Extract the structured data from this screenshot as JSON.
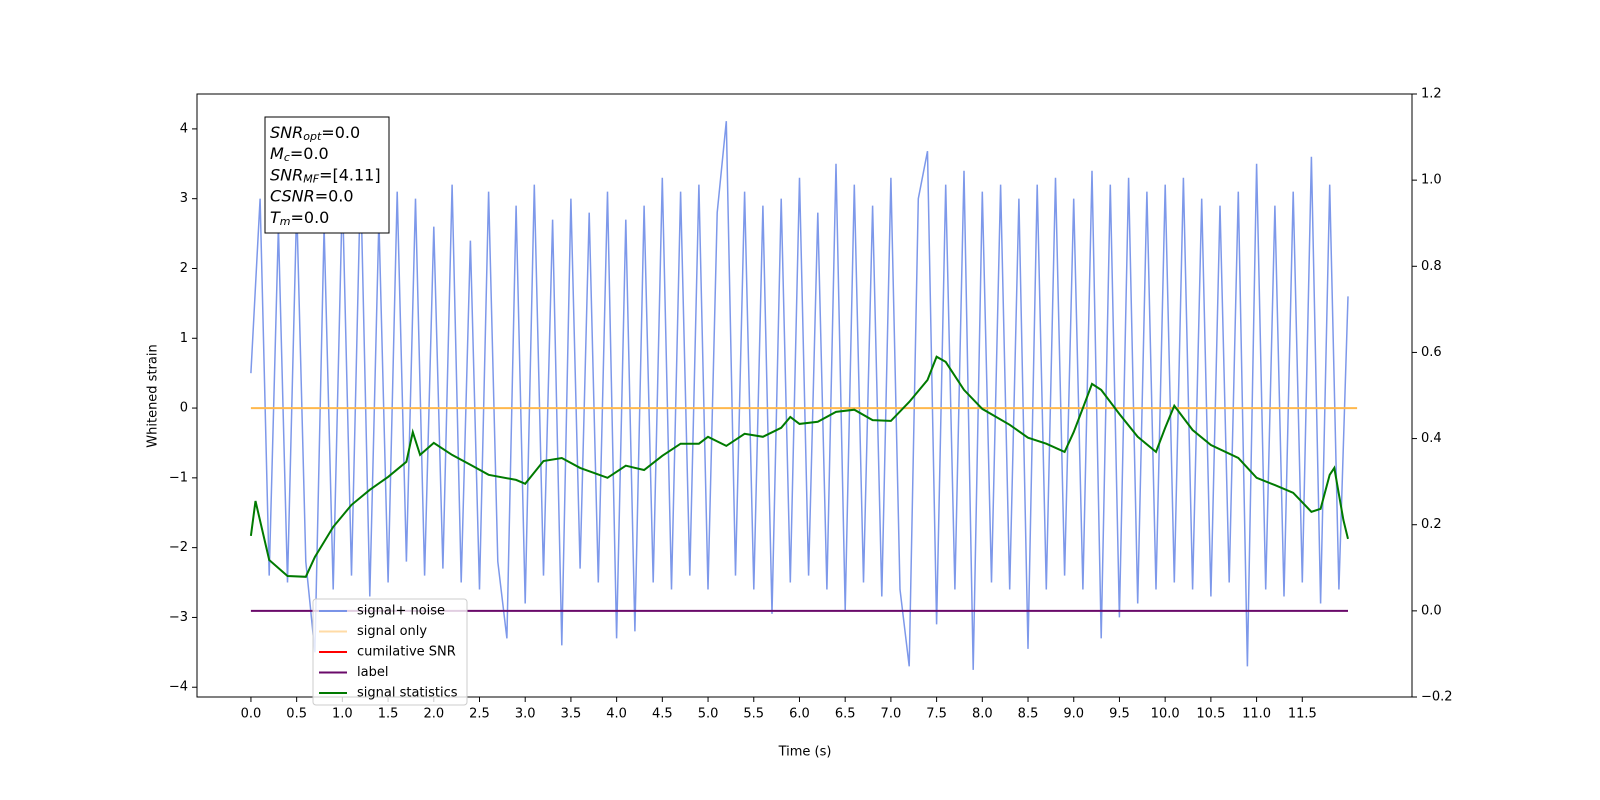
{
  "chart_data": {
    "type": "line",
    "xlabel": "Time (s)",
    "ylabel": "Whitened strain",
    "xlim": [
      -0.59,
      12.7
    ],
    "ylim": [
      -4.14,
      4.5
    ],
    "y2lim": [
      -0.2,
      1.2
    ],
    "xticks": [
      {
        "value": 0,
        "label": "0.0"
      },
      0.5,
      {
        "value": 1,
        "label": "1.0"
      },
      1.5,
      {
        "value": 2,
        "label": "2.0"
      },
      2.5,
      {
        "value": 3,
        "label": "3.0"
      },
      3.5,
      {
        "value": 4,
        "label": "4.0"
      },
      4.5,
      {
        "value": 5,
        "label": "5.0"
      },
      5.5,
      {
        "value": 6,
        "label": "6.0"
      },
      6.5,
      {
        "value": 7,
        "label": "7.0"
      },
      7.5,
      {
        "value": 8,
        "label": "8.0"
      },
      8.5,
      {
        "value": 9,
        "label": "9.0"
      },
      9.5,
      {
        "value": 10,
        "label": "10.0"
      },
      10.5,
      {
        "value": 11,
        "label": "11.0"
      },
      11.5
    ],
    "yticks": [
      {
        "value": -4,
        "label": "−4"
      },
      {
        "value": -3,
        "label": "−3"
      },
      {
        "value": -2,
        "label": "−2"
      },
      {
        "value": -1,
        "label": "−1"
      },
      0,
      1,
      2,
      3,
      4
    ],
    "y2ticks": [
      {
        "value": -0.2,
        "label": "−0.2"
      },
      {
        "value": 0,
        "label": "0.0"
      },
      0.2,
      0.4,
      0.6,
      0.8,
      {
        "value": 1,
        "label": "1.0"
      },
      1.2
    ],
    "legend": "lower left",
    "annotations": [
      {
        "text": "SNR",
        "sub": "opt",
        "rest": "=0.0"
      },
      {
        "text": "M",
        "sub": "c",
        "rest": "=0.0"
      },
      {
        "text": "SNR",
        "sub": "MF",
        "rest": "=[4.11]"
      },
      {
        "text": "CSNR",
        "sub": "",
        "rest": "=0.0"
      },
      {
        "text": "T",
        "sub": "m",
        "rest": "=0.0"
      }
    ],
    "series": [
      {
        "name": "signal+ noise",
        "color": "#6f8de8",
        "opacity": 0.9,
        "x": [
          0,
          0.1,
          0.2,
          0.3,
          0.4,
          0.5,
          0.6,
          0.7,
          0.8,
          0.9,
          1,
          1.1,
          1.2,
          1.3,
          1.4,
          1.5,
          1.6,
          1.7,
          1.8,
          1.9,
          2,
          2.1,
          2.2,
          2.3,
          2.4,
          2.5,
          2.6,
          2.7,
          2.8,
          2.9,
          3,
          3.1,
          3.2,
          3.3,
          3.4,
          3.5,
          3.6,
          3.7,
          3.8,
          3.9,
          4,
          4.1,
          4.2,
          4.3,
          4.4,
          4.5,
          4.6,
          4.7,
          4.8,
          4.9,
          5,
          5.1,
          5.2,
          5.3,
          5.4,
          5.5,
          5.6,
          5.7,
          5.8,
          5.9,
          6,
          6.1,
          6.2,
          6.3,
          6.4,
          6.5,
          6.6,
          6.7,
          6.8,
          6.9,
          7,
          7.1,
          7.2,
          7.3,
          7.4,
          7.5,
          7.6,
          7.7,
          7.8,
          7.9,
          8,
          8.1,
          8.2,
          8.3,
          8.4,
          8.5,
          8.6,
          8.7,
          8.8,
          8.9,
          9,
          9.1,
          9.2,
          9.3,
          9.4,
          9.5,
          9.6,
          9.7,
          9.8,
          9.9,
          10,
          10.1,
          10.2,
          10.3,
          10.4,
          10.5,
          10.6,
          10.7,
          10.8,
          10.9,
          11,
          11.1,
          11.2,
          11.3,
          11.4,
          11.5,
          11.6,
          11.7,
          11.8,
          11.9,
          12
        ],
        "values": [
          0.5,
          3.0,
          -2.4,
          2.6,
          -2.5,
          2.9,
          -2.2,
          -3.5,
          2.6,
          -2.6,
          3.1,
          -2.4,
          3.3,
          -2.7,
          2.7,
          -2.5,
          3.1,
          -2.2,
          3.0,
          -2.4,
          2.6,
          -2.3,
          3.2,
          -2.5,
          2.4,
          -2.6,
          3.1,
          -2.2,
          -3.3,
          2.9,
          -2.8,
          3.2,
          -2.4,
          2.7,
          -3.4,
          3.0,
          -2.3,
          2.8,
          -2.5,
          3.1,
          -3.3,
          2.7,
          -3.2,
          2.9,
          -2.5,
          3.3,
          -2.6,
          3.1,
          -2.4,
          3.2,
          -2.6,
          2.8,
          4.11,
          -2.4,
          3.1,
          -2.6,
          2.9,
          -2.95,
          3.0,
          -2.5,
          3.3,
          -2.4,
          2.8,
          -2.6,
          3.5,
          -2.9,
          3.2,
          -2.5,
          2.9,
          -2.7,
          3.3,
          -2.6,
          -3.7,
          3.0,
          3.68,
          -3.1,
          3.2,
          -2.6,
          3.4,
          -3.75,
          3.1,
          -2.5,
          3.2,
          -2.6,
          3.0,
          -3.45,
          3.2,
          -2.6,
          3.3,
          -2.4,
          3.0,
          -2.6,
          3.4,
          -3.3,
          3.2,
          -3.0,
          3.3,
          -2.8,
          3.1,
          -2.6,
          3.2,
          -2.5,
          3.3,
          -2.6,
          3.0,
          -2.7,
          2.9,
          -2.5,
          3.1,
          -3.7,
          3.5,
          -2.6,
          2.9,
          -2.7,
          3.1,
          -2.5,
          3.6,
          -2.8,
          3.2,
          -2.6,
          1.6
        ]
      },
      {
        "name": "signal only",
        "color": "#ffb84d",
        "x": [
          0,
          12.1
        ],
        "values": [
          0,
          0
        ]
      },
      {
        "name": "cumilative SNR",
        "color": "#ff0000",
        "x": [],
        "values": []
      },
      {
        "name": "label",
        "color": "#6a0a6a",
        "axis": "y2",
        "x": [
          0,
          12.0
        ],
        "values": [
          0,
          0
        ]
      },
      {
        "name": "signal statistics",
        "color": "#007a00",
        "axis": "y2",
        "x": [
          0,
          0.05,
          0.2,
          0.4,
          0.6,
          0.7,
          0.9,
          1.1,
          1.3,
          1.5,
          1.7,
          1.77,
          1.85,
          2.0,
          2.2,
          2.4,
          2.6,
          2.9,
          3.0,
          3.2,
          3.4,
          3.6,
          3.9,
          4.1,
          4.3,
          4.5,
          4.7,
          4.9,
          5.0,
          5.2,
          5.4,
          5.6,
          5.8,
          5.9,
          6.0,
          6.2,
          6.4,
          6.6,
          6.8,
          7.0,
          7.2,
          7.4,
          7.5,
          7.6,
          7.8,
          8.0,
          8.3,
          8.5,
          8.7,
          8.9,
          9.0,
          9.1,
          9.2,
          9.3,
          9.5,
          9.7,
          9.9,
          10.0,
          10.1,
          10.3,
          10.5,
          10.8,
          11.0,
          11.2,
          11.4,
          11.6,
          11.7,
          11.8,
          11.85,
          11.95,
          12.0
        ],
        "values": [
          0.174,
          0.255,
          0.118,
          0.081,
          0.079,
          0.125,
          0.195,
          0.246,
          0.281,
          0.311,
          0.346,
          0.415,
          0.362,
          0.39,
          0.362,
          0.339,
          0.316,
          0.304,
          0.295,
          0.348,
          0.355,
          0.332,
          0.309,
          0.337,
          0.327,
          0.36,
          0.388,
          0.388,
          0.404,
          0.383,
          0.411,
          0.404,
          0.425,
          0.45,
          0.434,
          0.439,
          0.462,
          0.467,
          0.443,
          0.441,
          0.485,
          0.536,
          0.59,
          0.578,
          0.513,
          0.469,
          0.432,
          0.402,
          0.388,
          0.369,
          0.415,
          0.471,
          0.527,
          0.513,
          0.457,
          0.404,
          0.369,
          0.425,
          0.476,
          0.42,
          0.385,
          0.355,
          0.309,
          0.292,
          0.274,
          0.23,
          0.237,
          0.316,
          0.332,
          0.211,
          0.167
        ]
      }
    ]
  }
}
